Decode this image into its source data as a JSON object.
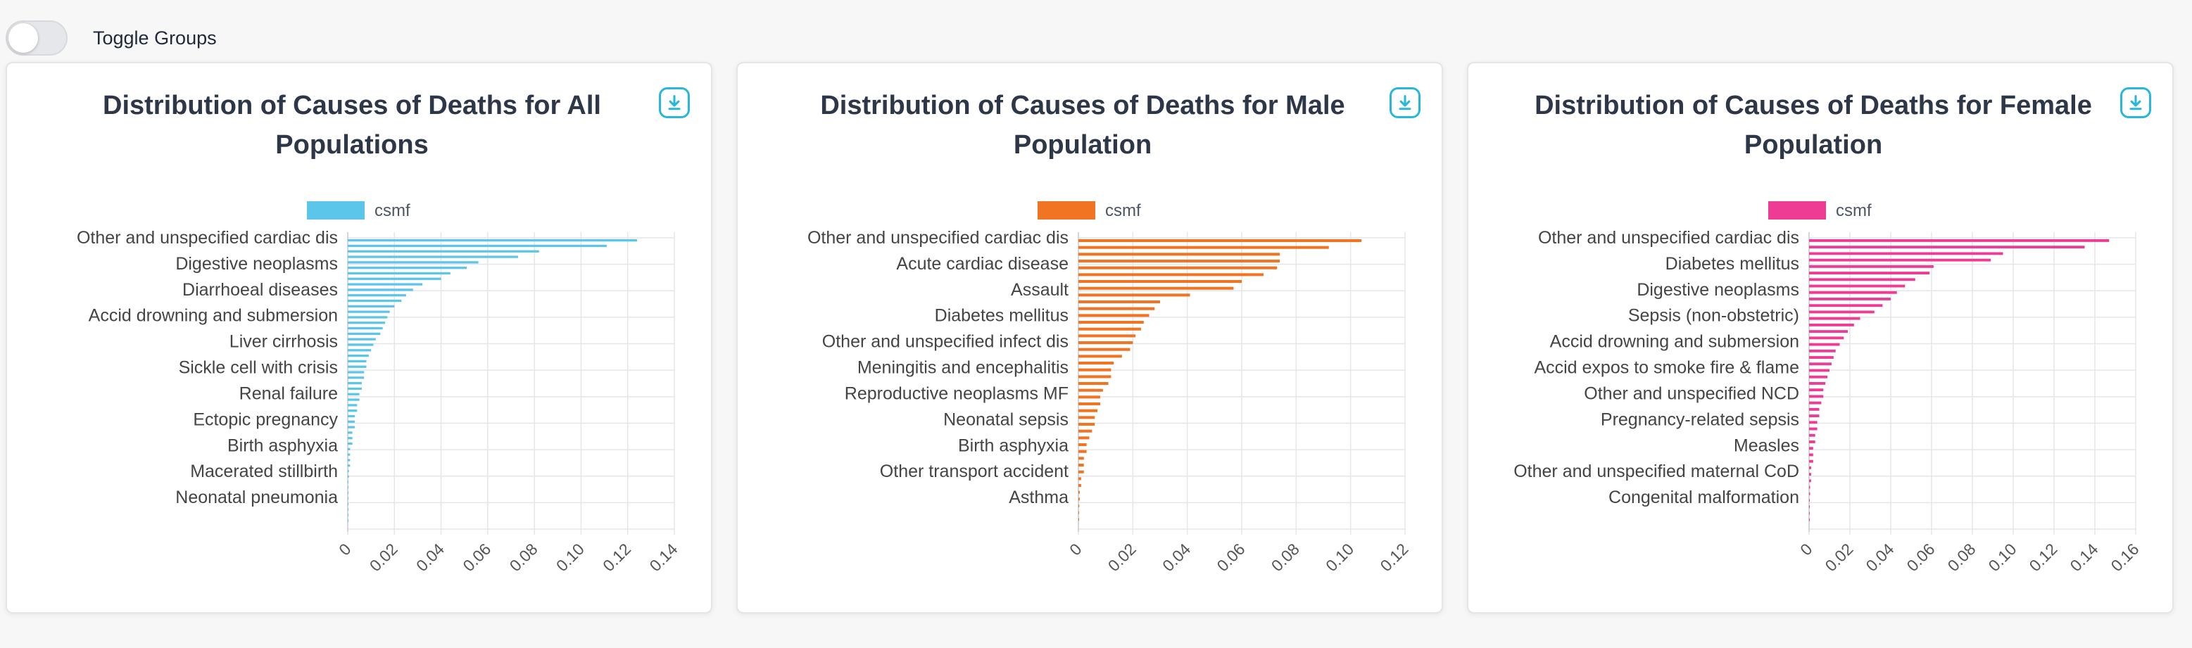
{
  "toggle": {
    "label": "Toggle Groups",
    "on": false
  },
  "chart_data": [
    {
      "type": "bar",
      "orientation": "horizontal",
      "title": "Distribution of Causes of Deaths for All Populations",
      "title_lines": [
        "Distribution of Causes of Deaths for All",
        "Populations"
      ],
      "series_name": "csmf",
      "color": "#5bc6ea",
      "xlim": [
        0,
        0.14
      ],
      "xticks": [
        0,
        0.02,
        0.04,
        0.06,
        0.08,
        0.1,
        0.12,
        0.14
      ],
      "xtick_labels": [
        "0",
        "0.02",
        "0.04",
        "0.06",
        "0.08",
        "0.10",
        "0.12",
        "0.14"
      ],
      "category_labels": [
        "Other and unspecified cardiac dis",
        "Digestive neoplasms",
        "Diarrhoeal diseases",
        "Accid drowning and submersion",
        "Liver cirrhosis",
        "Sickle cell with crisis",
        "Renal failure",
        "Ectopic pregnancy",
        "Birth asphyxia",
        "Macerated stillbirth",
        "Neonatal pneumonia"
      ],
      "values": [
        0.124,
        0.111,
        0.082,
        0.073,
        0.056,
        0.051,
        0.044,
        0.04,
        0.032,
        0.028,
        0.025,
        0.023,
        0.02,
        0.018,
        0.017,
        0.016,
        0.015,
        0.014,
        0.012,
        0.011,
        0.01,
        0.009,
        0.008,
        0.008,
        0.007,
        0.007,
        0.006,
        0.006,
        0.005,
        0.005,
        0.004,
        0.004,
        0.003,
        0.003,
        0.003,
        0.002,
        0.002,
        0.002,
        0.001,
        0.001,
        0.001,
        0.001,
        0.0005,
        0.0005,
        0.0003,
        0.0003,
        0.0002,
        0.0002,
        0.0001,
        0.0001,
        0.0001,
        0.0001
      ]
    },
    {
      "type": "bar",
      "orientation": "horizontal",
      "title": "Distribution of Causes of Deaths for Male Population",
      "title_lines": [
        "Distribution of Causes of Deaths for Male",
        "Population"
      ],
      "series_name": "csmf",
      "color": "#f07421",
      "xlim": [
        0,
        0.12
      ],
      "xticks": [
        0,
        0.02,
        0.04,
        0.06,
        0.08,
        0.1,
        0.12
      ],
      "xtick_labels": [
        "0",
        "0.02",
        "0.04",
        "0.06",
        "0.08",
        "0.10",
        "0.12"
      ],
      "category_labels": [
        "Other and unspecified cardiac dis",
        "Acute cardiac disease",
        "Assault",
        "Diabetes mellitus",
        "Other and unspecified infect dis",
        "Meningitis and encephalitis",
        "Reproductive neoplasms MF",
        "Neonatal sepsis",
        "Birth asphyxia",
        "Other transport accident",
        "Asthma"
      ],
      "values": [
        0.104,
        0.092,
        0.074,
        0.074,
        0.073,
        0.068,
        0.06,
        0.057,
        0.041,
        0.03,
        0.028,
        0.026,
        0.024,
        0.023,
        0.021,
        0.02,
        0.019,
        0.016,
        0.013,
        0.012,
        0.012,
        0.011,
        0.009,
        0.008,
        0.008,
        0.007,
        0.006,
        0.006,
        0.005,
        0.004,
        0.003,
        0.003,
        0.002,
        0.002,
        0.002,
        0.001,
        0.001,
        0.0005,
        0.0005,
        0.0003,
        0.0002,
        0.0001
      ]
    },
    {
      "type": "bar",
      "orientation": "horizontal",
      "title": "Distribution of Causes of Deaths for Female Population",
      "title_lines": [
        "Distribution of Causes of Deaths for Female",
        "Population"
      ],
      "series_name": "csmf",
      "color": "#ee3c95",
      "xlim": [
        0,
        0.16
      ],
      "xticks": [
        0,
        0.02,
        0.04,
        0.06,
        0.08,
        0.1,
        0.12,
        0.14,
        0.16
      ],
      "xtick_labels": [
        "0",
        "0.02",
        "0.04",
        "0.06",
        "0.08",
        "0.10",
        "0.12",
        "0.14",
        "0.16"
      ],
      "category_labels": [
        "Other and unspecified cardiac dis",
        "Diabetes mellitus",
        "Digestive neoplasms",
        "Sepsis (non-obstetric)",
        "Accid drowning and submersion",
        "Accid expos to smoke fire & flame",
        "Other and unspecified NCD",
        "Pregnancy-related sepsis",
        "Measles",
        "Other and unspecified maternal CoD",
        "Congenital malformation"
      ],
      "values": [
        0.147,
        0.135,
        0.095,
        0.089,
        0.061,
        0.059,
        0.052,
        0.047,
        0.043,
        0.04,
        0.036,
        0.032,
        0.025,
        0.022,
        0.019,
        0.017,
        0.015,
        0.013,
        0.012,
        0.011,
        0.01,
        0.009,
        0.008,
        0.007,
        0.007,
        0.006,
        0.005,
        0.005,
        0.004,
        0.004,
        0.003,
        0.003,
        0.002,
        0.002,
        0.002,
        0.001,
        0.001,
        0.001,
        0.0005,
        0.0005,
        0.0003,
        0.0002,
        0.0001,
        0.0001
      ]
    }
  ],
  "icons": {
    "download": "download-icon"
  }
}
